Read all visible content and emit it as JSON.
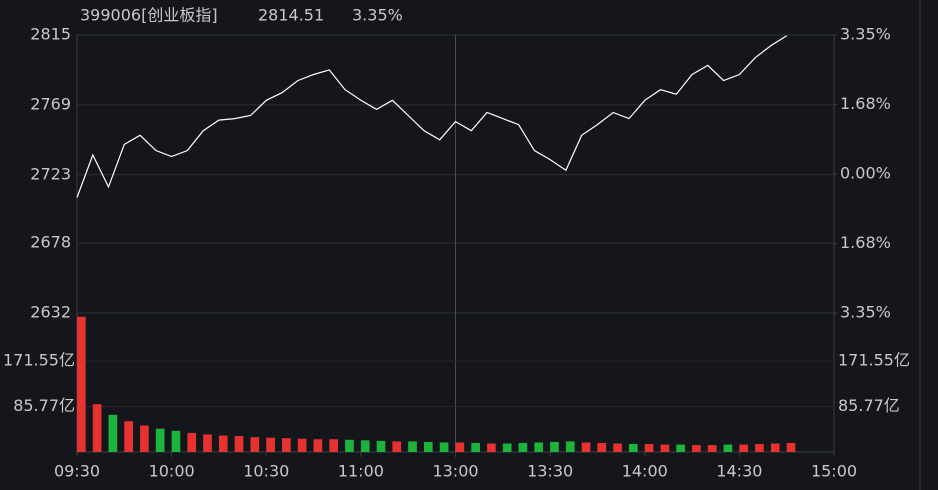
{
  "chart_data": [
    {
      "type": "line",
      "title": "399006[创业板指]",
      "last_price": 2814.51,
      "change_pct": {
        "value": 3.35,
        "label": "3.35%"
      },
      "x": [
        0,
        5,
        10,
        15,
        20,
        25,
        30,
        35,
        40,
        45,
        50,
        55,
        60,
        65,
        70,
        75,
        80,
        85,
        90,
        95,
        100,
        105,
        110,
        115,
        120,
        125,
        130,
        135,
        140,
        145,
        150,
        155,
        160,
        165,
        170,
        175,
        180,
        185,
        190,
        195,
        200,
        205,
        210,
        215,
        220,
        225
      ],
      "xlim": [
        0,
        240
      ],
      "series": [
        {
          "color": "#ffffff",
          "values": [
            2708,
            2736,
            2715,
            2743,
            2749,
            2739,
            2735,
            2739,
            2752,
            2759,
            2760,
            2762,
            2772,
            2777,
            2785,
            2789,
            2792,
            2779,
            2772,
            2766,
            2772,
            2762,
            2752,
            2746,
            2758,
            2752,
            2764,
            2760,
            2756,
            2739,
            2733,
            2726,
            2749,
            2756,
            2764,
            2760,
            2772,
            2779,
            2776,
            2789,
            2795,
            2785,
            2789,
            2800,
            2808,
            2814.51
          ]
        }
      ],
      "ylim": [
        2632,
        2815
      ],
      "yticks": [
        2815,
        2769,
        2723,
        2678,
        2632
      ],
      "y2lim": [
        -3.35,
        3.35
      ],
      "y2ticks": [
        {
          "value": 3.35,
          "label": "3.35%"
        },
        {
          "value": 1.68,
          "label": "1.68%"
        },
        {
          "value": 0,
          "label": "0.00%"
        },
        {
          "value": -1.68,
          "label": "1.68%"
        },
        {
          "value": -3.35,
          "label": "3.35%"
        }
      ],
      "rise_color": "#ff3c3c",
      "fall_color": "#1ec83c",
      "flat_color": "#c8c8c8",
      "grid": true
    },
    {
      "type": "bar",
      "x": [
        0,
        5,
        10,
        15,
        20,
        25,
        30,
        35,
        40,
        45,
        50,
        55,
        60,
        65,
        70,
        75,
        80,
        85,
        90,
        95,
        100,
        105,
        110,
        115,
        120,
        125,
        130,
        135,
        140,
        145,
        150,
        155,
        160,
        165,
        170,
        175,
        180,
        185,
        190,
        195,
        200,
        205,
        210,
        215,
        220,
        225
      ],
      "xlim": [
        0,
        240
      ],
      "xticks": [
        {
          "value": 0,
          "label": "09:30"
        },
        {
          "value": 30,
          "label": "10:00"
        },
        {
          "value": 60,
          "label": "10:30"
        },
        {
          "value": 90,
          "label": "11:00"
        },
        {
          "value": 120,
          "label": "13:00"
        },
        {
          "value": 150,
          "label": "13:30"
        },
        {
          "value": 180,
          "label": "14:00"
        },
        {
          "value": 210,
          "label": "14:30"
        },
        {
          "value": 240,
          "label": "15:00"
        }
      ],
      "values": [
        255,
        90,
        70,
        58,
        50,
        44,
        40,
        36,
        33,
        31,
        30,
        28,
        27,
        26,
        25,
        24,
        24,
        23,
        22,
        21,
        20,
        20,
        19,
        18,
        18,
        17,
        16,
        16,
        17,
        18,
        19,
        20,
        18,
        17,
        16,
        15,
        15,
        14,
        14,
        13,
        13,
        14,
        14,
        15,
        16,
        17
      ],
      "ylim": [
        0,
        262
      ],
      "yticks": [
        {
          "value": 171.55,
          "label": "171.55亿"
        },
        {
          "value": 85.77,
          "label": "85.77亿"
        }
      ],
      "up_color": "#e83232",
      "down_color": "#1eb43c"
    }
  ]
}
